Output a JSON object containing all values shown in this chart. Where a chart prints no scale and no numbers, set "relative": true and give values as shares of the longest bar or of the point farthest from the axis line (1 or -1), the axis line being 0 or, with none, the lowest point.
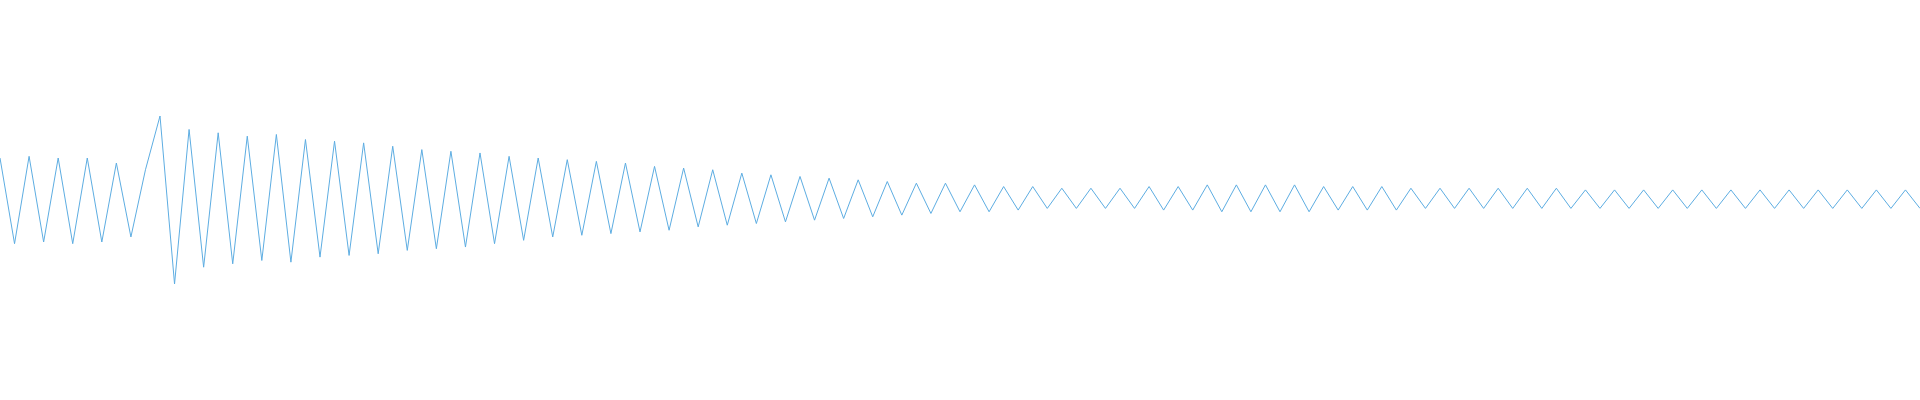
{
  "chart_data": {
    "type": "line",
    "relative": true,
    "color": "#5dade2",
    "categories": [
      null,
      null,
      null,
      null,
      null,
      null,
      null,
      null,
      null,
      null,
      null,
      null,
      null,
      null,
      null,
      null,
      null,
      null,
      null,
      null,
      null,
      null,
      null,
      null,
      null,
      null,
      null,
      null,
      null,
      null,
      null,
      null,
      null,
      null,
      null,
      null,
      null,
      null,
      null,
      null,
      null,
      null,
      null,
      null,
      null,
      null,
      null,
      null,
      null,
      null,
      null,
      null,
      null,
      null,
      null,
      null,
      null,
      null,
      null,
      null,
      null,
      null,
      null,
      null,
      null,
      null,
      null,
      null,
      null,
      null,
      null,
      null,
      null,
      null,
      null,
      null,
      null,
      null,
      null,
      null,
      null,
      null,
      null,
      null,
      null,
      null,
      null,
      null,
      null,
      null,
      null,
      null,
      null,
      null,
      null,
      null,
      null,
      null,
      null,
      null,
      null,
      null,
      null,
      null,
      null,
      null,
      null,
      null,
      null,
      null,
      null,
      null,
      null,
      null,
      null,
      null,
      null,
      null,
      null,
      null,
      null,
      null,
      null,
      null,
      null,
      null,
      null,
      null,
      null,
      null,
      null,
      null,
      null
    ],
    "values": [
      0.75,
      0.24,
      0.76,
      0.25,
      0.75,
      0.24,
      0.75,
      0.25,
      0.72,
      0.28,
      0.68,
      1.0,
      0.0,
      0.92,
      0.1,
      0.9,
      0.12,
      0.88,
      0.14,
      0.89,
      0.13,
      0.86,
      0.16,
      0.85,
      0.17,
      0.84,
      0.18,
      0.82,
      0.2,
      0.8,
      0.21,
      0.79,
      0.22,
      0.78,
      0.24,
      0.76,
      0.26,
      0.75,
      0.28,
      0.74,
      0.29,
      0.73,
      0.3,
      0.72,
      0.31,
      0.7,
      0.32,
      0.69,
      0.34,
      0.68,
      0.35,
      0.66,
      0.36,
      0.65,
      0.37,
      0.64,
      0.38,
      0.63,
      0.39,
      0.62,
      0.4,
      0.61,
      0.41,
      0.6,
      0.42,
      0.6,
      0.43,
      0.59,
      0.43,
      0.58,
      0.44,
      0.58,
      0.45,
      0.57,
      0.45,
      0.57,
      0.45,
      0.57,
      0.45,
      0.58,
      0.44,
      0.58,
      0.44,
      0.59,
      0.43,
      0.59,
      0.43,
      0.59,
      0.43,
      0.59,
      0.43,
      0.58,
      0.44,
      0.58,
      0.44,
      0.58,
      0.44,
      0.57,
      0.45,
      0.57,
      0.45,
      0.57,
      0.45,
      0.57,
      0.45,
      0.57,
      0.45,
      0.57,
      0.45,
      0.56,
      0.45,
      0.56,
      0.45,
      0.56,
      0.45,
      0.56,
      0.45,
      0.56,
      0.45,
      0.56,
      0.45,
      0.56,
      0.45,
      0.56,
      0.45,
      0.56,
      0.45,
      0.56,
      0.45,
      0.56,
      0.45,
      0.56,
      0.45
    ]
  }
}
